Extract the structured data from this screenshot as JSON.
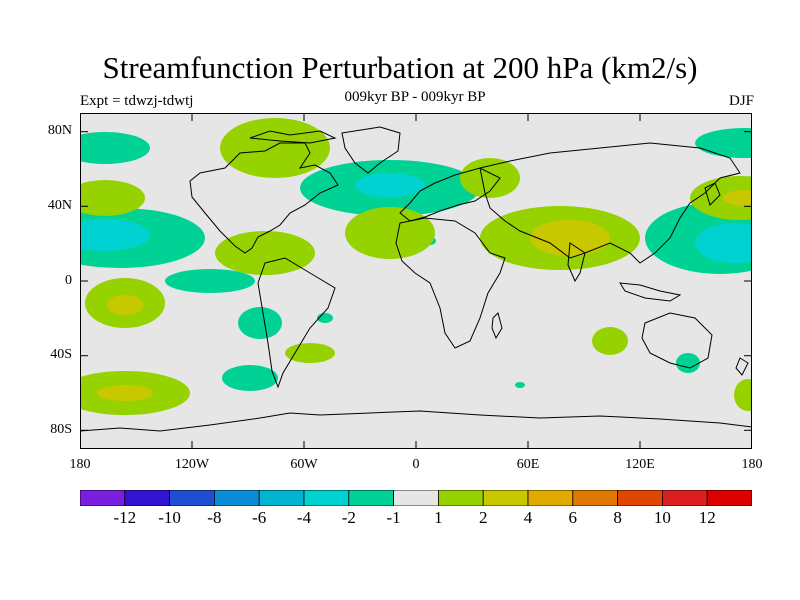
{
  "title": "Streamfunction Perturbation at 200 hPa (km2/s)",
  "left_label": "Expt = tdwzj-tdwtj",
  "center_label": "009kyr BP - 009kyr BP",
  "right_label": "DJF",
  "lat_ticks": [
    "80N",
    "40N",
    "0",
    "40S",
    "80S"
  ],
  "lon_ticks": [
    "180",
    "120W",
    "60W",
    "0",
    "60E",
    "120E",
    "180"
  ],
  "colorbar": {
    "colors": [
      "#7a1ee0",
      "#3214d2",
      "#1e4ed2",
      "#0a8cd6",
      "#00b4d2",
      "#00d2d2",
      "#00d296",
      "#e6e6e6",
      "#96d200",
      "#c8c800",
      "#e1aa00",
      "#e17800",
      "#e14600",
      "#dc1e1e",
      "#dc0000"
    ],
    "labels": [
      "-12",
      "-10",
      "-8",
      "-6",
      "-4",
      "-2",
      "-1",
      "1",
      "2",
      "4",
      "6",
      "8",
      "10",
      "12"
    ]
  },
  "chart_data": {
    "type": "heatmap",
    "variable": "Streamfunction Perturbation at 200 hPa",
    "units": "km2/s",
    "season": "DJF",
    "x_range": [
      -180,
      180
    ],
    "y_range": [
      -90,
      90
    ],
    "levels": [
      -12,
      -10,
      -8,
      -6,
      -4,
      -2,
      -1,
      1,
      2,
      4,
      6,
      8,
      10,
      12
    ]
  }
}
